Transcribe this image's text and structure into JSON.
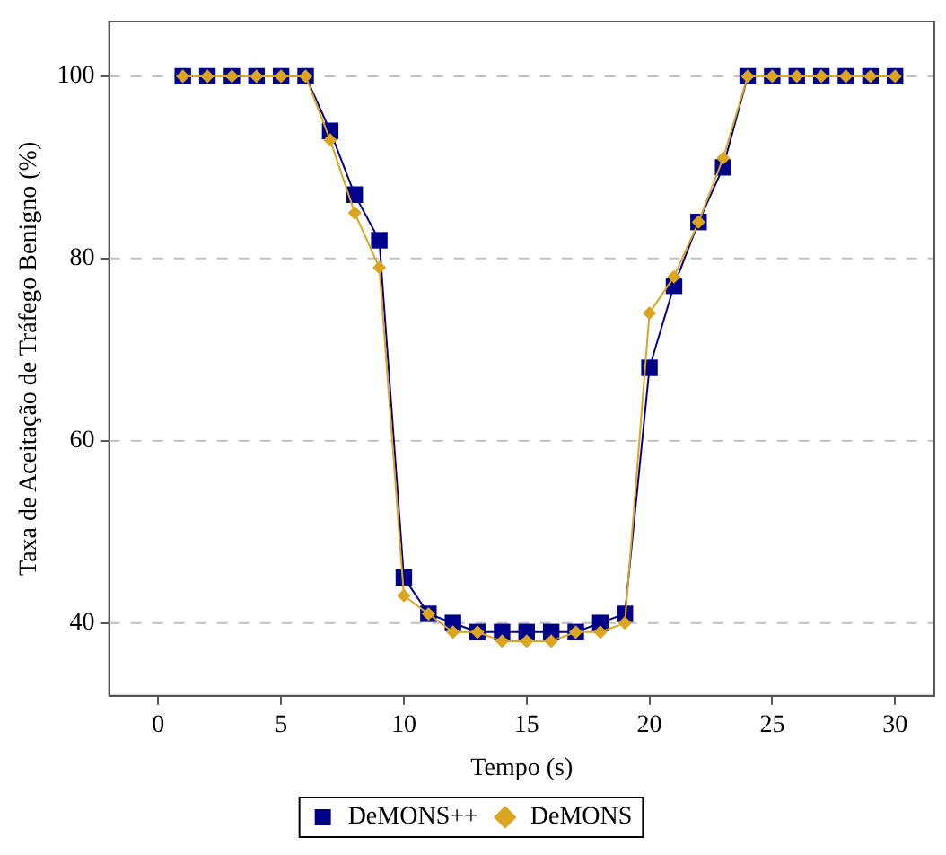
{
  "chart_data": {
    "type": "line",
    "xlabel": "Tempo (s)",
    "ylabel": "Taxa de Aceitação de Tráfego Benigno (%)",
    "x": [
      1,
      2,
      3,
      4,
      5,
      6,
      7,
      8,
      9,
      10,
      11,
      12,
      13,
      14,
      15,
      16,
      17,
      18,
      19,
      20,
      21,
      22,
      23,
      24,
      25,
      26,
      27,
      28,
      29,
      30
    ],
    "series": [
      {
        "name": "DeMONS++",
        "color": "#00008b",
        "marker": "square",
        "values": [
          100,
          100,
          100,
          100,
          100,
          100,
          94,
          87,
          82,
          45,
          41,
          40,
          39,
          39,
          39,
          39,
          39,
          40,
          41,
          68,
          77,
          84,
          90,
          100,
          100,
          100,
          100,
          100,
          100,
          100
        ]
      },
      {
        "name": "DeMONS",
        "color": "#daa520",
        "marker": "diamond",
        "values": [
          100,
          100,
          100,
          100,
          100,
          100,
          93,
          85,
          79,
          43,
          41,
          39,
          39,
          38,
          38,
          38,
          39,
          39,
          40,
          74,
          78,
          84,
          91,
          100,
          100,
          100,
          100,
          100,
          100,
          100
        ]
      }
    ],
    "xlim": [
      -2,
      31.6
    ],
    "xticks": [
      0,
      5,
      10,
      15,
      20,
      25,
      30
    ],
    "ylim": [
      32,
      106
    ],
    "yticks": [
      40,
      60,
      80,
      100
    ],
    "grid": "y",
    "legend": "bottom"
  }
}
